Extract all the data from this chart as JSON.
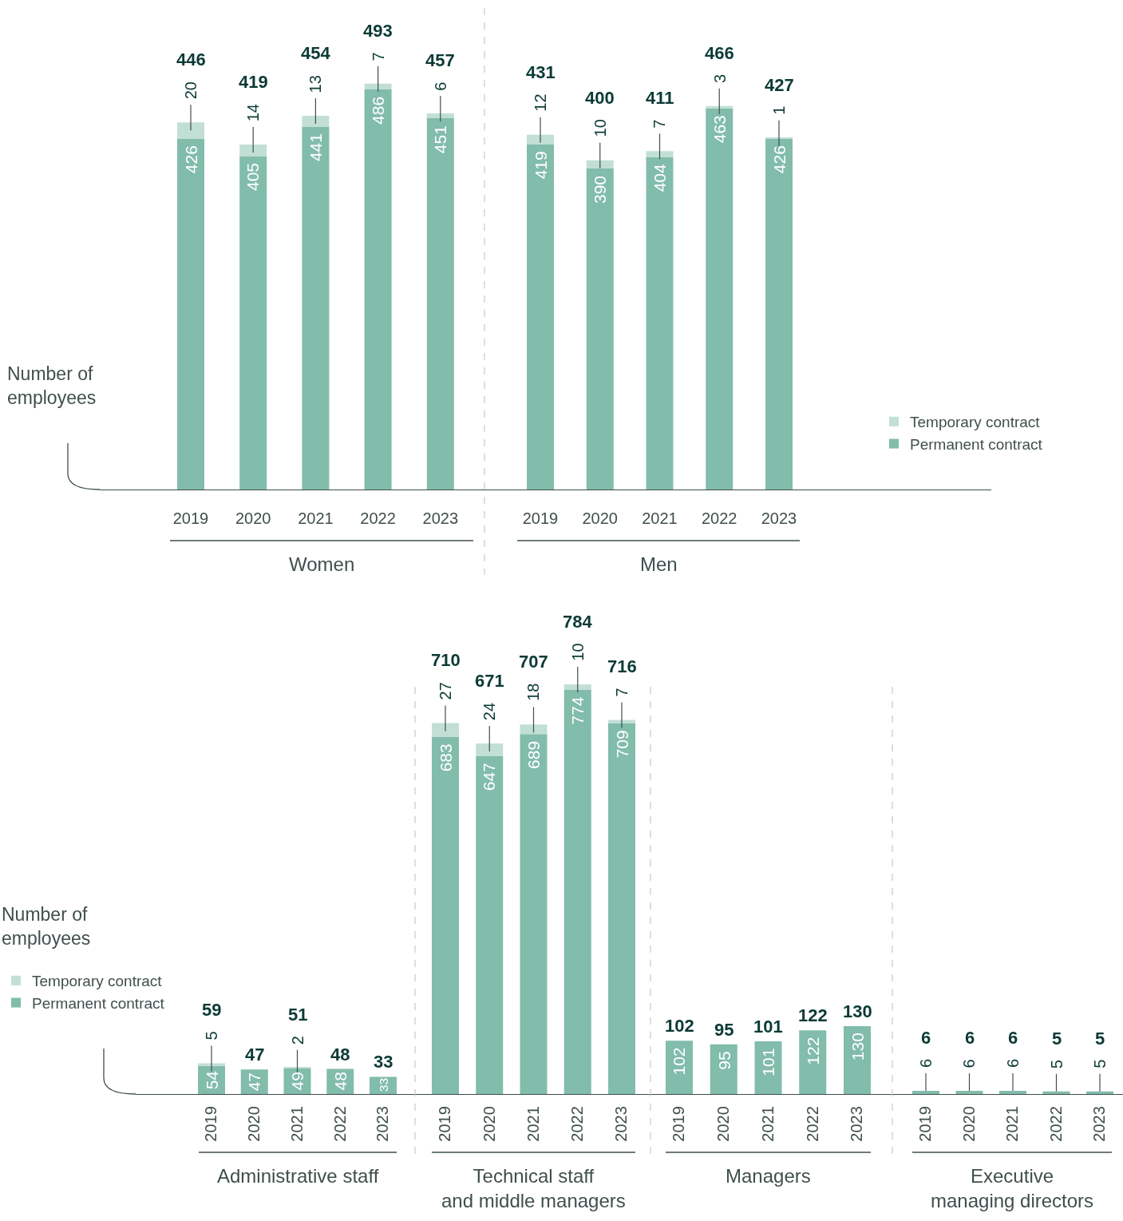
{
  "chart_data": [
    {
      "type": "bar",
      "stacked": true,
      "data_labels": true,
      "xlabel": "Women",
      "ylabel": "Number of employees",
      "legend": "right",
      "categories": [
        "2019",
        "2020",
        "2021",
        "2022",
        "2023"
      ],
      "series": [
        {
          "name": "Permanent contract",
          "color": "#82bcab",
          "values": [
            426,
            405,
            441,
            486,
            451
          ]
        },
        {
          "name": "Temporary contract",
          "color": "#c2dfd5",
          "values": [
            20,
            14,
            13,
            7,
            6
          ]
        }
      ],
      "totals": [
        "446",
        "419",
        "454",
        "493",
        "457"
      ]
    },
    {
      "type": "bar",
      "stacked": true,
      "data_labels": true,
      "xlabel": "Men",
      "categories": [
        "2019",
        "2020",
        "2021",
        "2022",
        "2023"
      ],
      "series": [
        {
          "color": "#82bcab",
          "values": [
            419,
            390,
            404,
            463,
            426
          ]
        },
        {
          "color": "#c2dfd5",
          "values": [
            12,
            10,
            7,
            3,
            1
          ]
        }
      ],
      "totals": [
        "431",
        "400",
        "411",
        "466",
        "427"
      ]
    },
    {
      "type": "bar",
      "stacked": true,
      "data_labels": true,
      "xlabel": "Administrative staff",
      "ylabel": "Number of employees",
      "legend": "left",
      "categories": [
        "2019",
        "2020",
        "2021",
        "2022",
        "2023"
      ],
      "series": [
        {
          "name": "Permanent contract",
          "color": "#82bcab",
          "values": [
            54,
            47,
            49,
            48,
            33
          ]
        },
        {
          "name": "Temporary contract",
          "color": "#c2dfd5",
          "values": [
            5,
            null,
            2,
            null,
            null
          ]
        }
      ],
      "totals": [
        "59",
        "47",
        "51",
        "48",
        "33"
      ]
    },
    {
      "type": "bar",
      "stacked": true,
      "data_labels": true,
      "xlabel": "Technical staff and middle managers",
      "categories": [
        "2019",
        "2020",
        "2021",
        "2022",
        "2023"
      ],
      "series": [
        {
          "color": "#82bcab",
          "values": [
            683,
            647,
            689,
            774,
            709
          ]
        },
        {
          "color": "#c2dfd5",
          "values": [
            27,
            24,
            18,
            10,
            7
          ]
        }
      ],
      "totals": [
        "710",
        "671",
        "707",
        "784",
        "716"
      ]
    },
    {
      "type": "bar",
      "stacked": true,
      "data_labels": true,
      "xlabel": "Managers",
      "categories": [
        "2019",
        "2020",
        "2021",
        "2022",
        "2023"
      ],
      "series": [
        {
          "color": "#82bcab",
          "values": [
            102,
            95,
            101,
            122,
            130
          ]
        },
        {
          "color": "#c2dfd5",
          "values": [
            null,
            null,
            null,
            null,
            null
          ]
        }
      ],
      "totals": [
        "102",
        "95",
        "101",
        "122",
        "130"
      ]
    },
    {
      "type": "bar",
      "stacked": true,
      "data_labels": true,
      "xlabel": "Executive managing directors",
      "categories": [
        "2019",
        "2020",
        "2021",
        "2022",
        "2023"
      ],
      "series": [
        {
          "color": "#82bcab",
          "values": [
            6,
            6,
            6,
            5,
            5
          ]
        },
        {
          "color": "#c2dfd5",
          "values": [
            null,
            null,
            null,
            null,
            null
          ]
        }
      ],
      "totals": [
        "6",
        "6",
        "6",
        "5",
        "5"
      ]
    }
  ]
}
